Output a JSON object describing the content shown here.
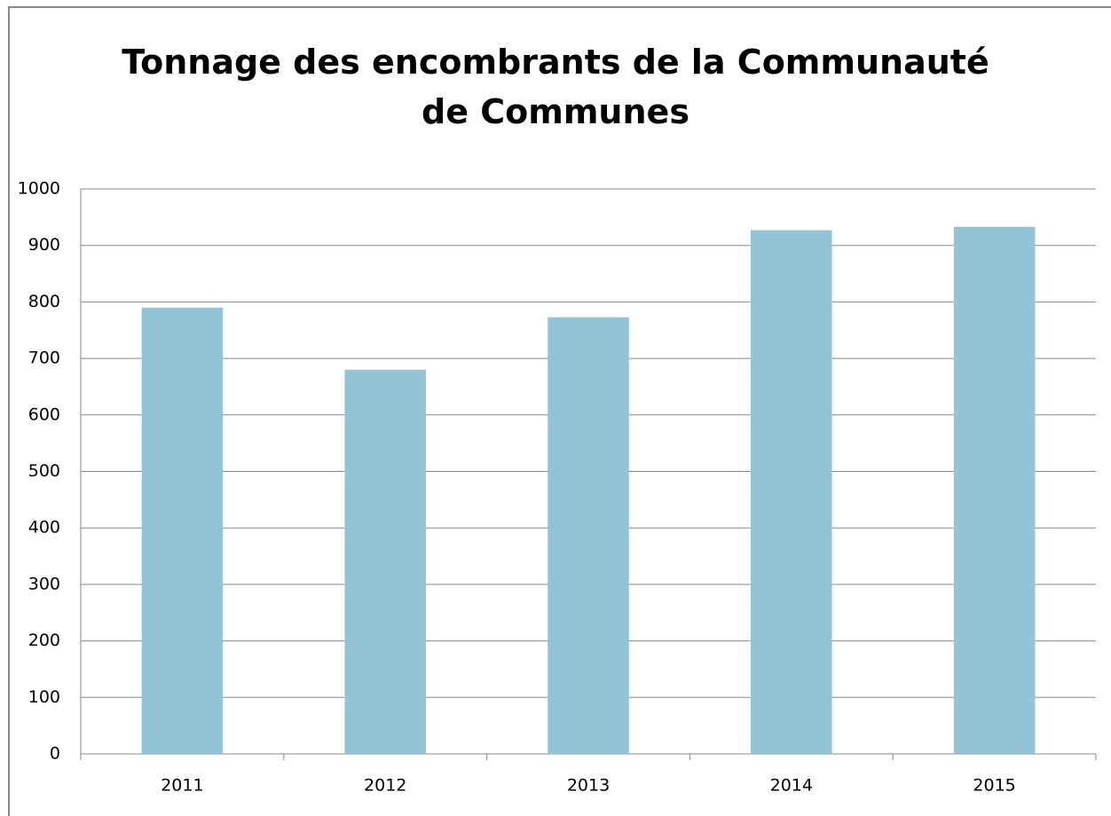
{
  "chart_data": {
    "type": "bar",
    "title": "Tonnage des encombrants de la Communauté de Communes",
    "categories": [
      "2011",
      "2012",
      "2013",
      "2014",
      "2015"
    ],
    "values": [
      790,
      680,
      773,
      927,
      933
    ],
    "color": "#93c3d5",
    "ylim": [
      0,
      1000
    ],
    "yticks": [
      0,
      100,
      200,
      300,
      400,
      500,
      600,
      700,
      800,
      900,
      1000
    ],
    "grid": true
  }
}
